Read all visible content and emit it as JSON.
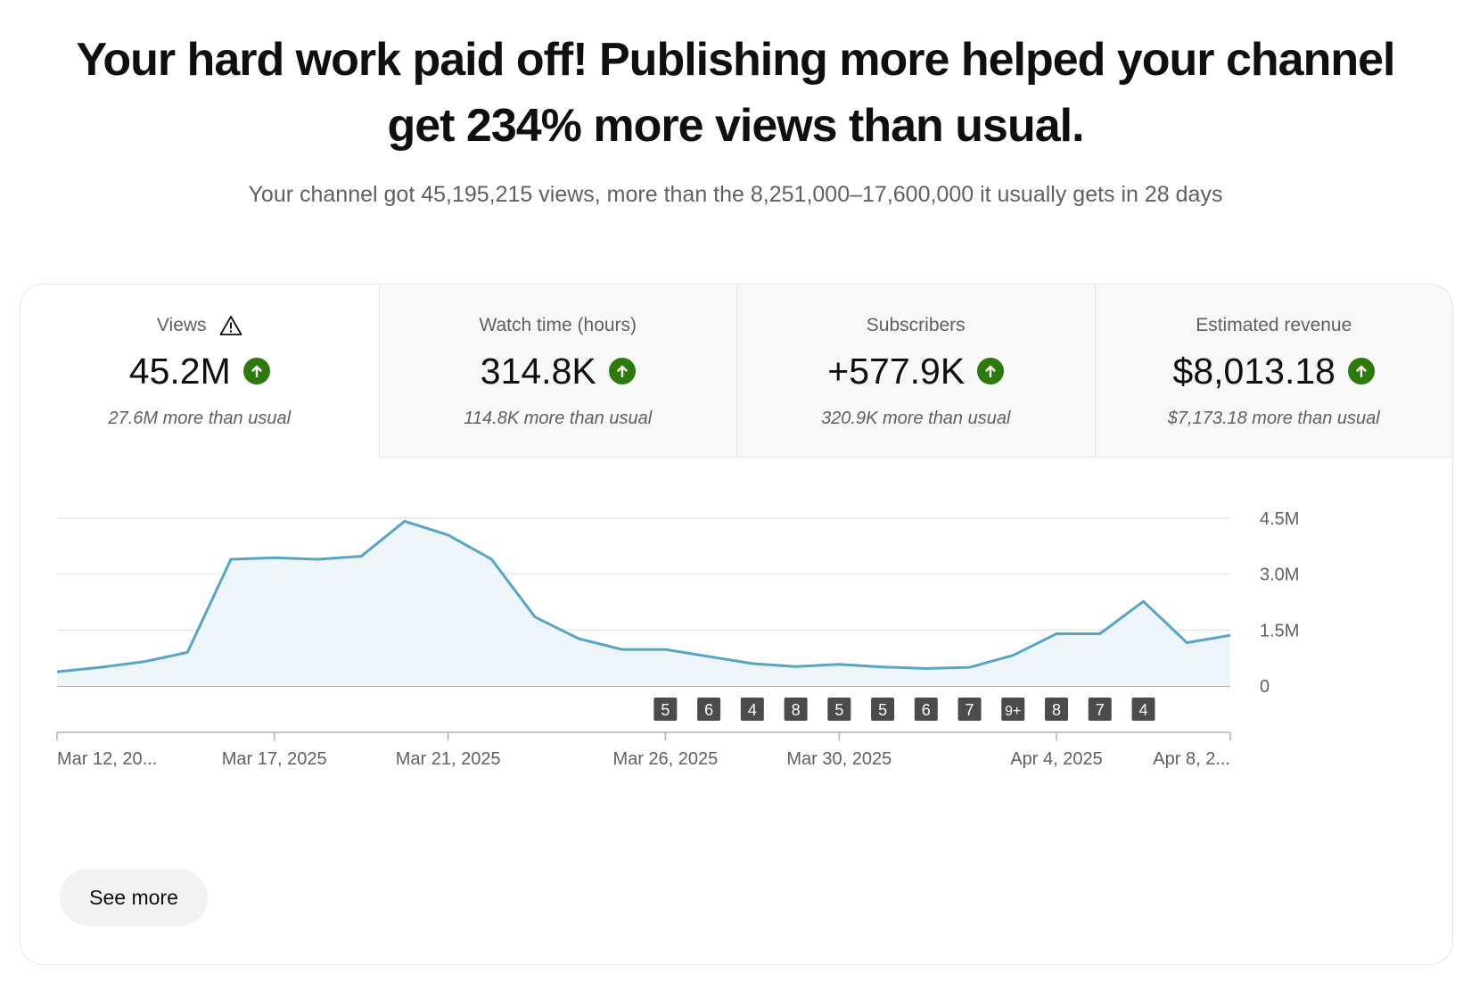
{
  "headline": {
    "line1": "Your hard work paid off! Publishing more helped your channel",
    "line2": "get 234% more views than usual."
  },
  "subline": "Your channel got 45,195,215 views, more than the 8,251,000–17,600,000 it usually gets in 28 days",
  "colors": {
    "accent_line": "#56a4c9",
    "area_fill": "#eef5f9",
    "up_badge": "#2b7a0b",
    "marker_bg": "#4b4b4b"
  },
  "tabs": [
    {
      "label": "Views",
      "value": "45.2M",
      "sub": "27.6M more than usual",
      "icon": "warning-icon",
      "active": true
    },
    {
      "label": "Watch time (hours)",
      "value": "314.8K",
      "sub": "114.8K more than usual",
      "active": false
    },
    {
      "label": "Subscribers",
      "value": "+577.9K",
      "sub": "320.9K more than usual",
      "active": false
    },
    {
      "label": "Estimated revenue",
      "value": "$8,013.18",
      "sub": "$7,173.18 more than usual",
      "active": false
    }
  ],
  "chart_data": {
    "type": "area",
    "title": "",
    "xlabel": "",
    "ylabel": "",
    "x": [
      "Mar 12, 2025",
      "Mar 13, 2025",
      "Mar 14, 2025",
      "Mar 15, 2025",
      "Mar 16, 2025",
      "Mar 17, 2025",
      "Mar 18, 2025",
      "Mar 19, 2025",
      "Mar 20, 2025",
      "Mar 21, 2025",
      "Mar 22, 2025",
      "Mar 23, 2025",
      "Mar 24, 2025",
      "Mar 25, 2025",
      "Mar 26, 2025",
      "Mar 27, 2025",
      "Mar 28, 2025",
      "Mar 29, 2025",
      "Mar 30, 2025",
      "Mar 31, 2025",
      "Apr 1, 2025",
      "Apr 2, 2025",
      "Apr 3, 2025",
      "Apr 4, 2025",
      "Apr 5, 2025",
      "Apr 6, 2025",
      "Apr 7, 2025",
      "Apr 8, 2025"
    ],
    "series": [
      {
        "values": [
          380000,
          500000,
          650000,
          900000,
          3400000,
          3440000,
          3400000,
          3480000,
          4420000,
          4050000,
          3400000,
          1850000,
          1270000,
          980000,
          980000,
          790000,
          600000,
          520000,
          580000,
          510000,
          470000,
          500000,
          820000,
          1400000,
          1400000,
          2270000,
          1160000,
          1360000
        ]
      }
    ],
    "y_ticks": [
      {
        "value": 4500000,
        "label": "4.5M"
      },
      {
        "value": 3000000,
        "label": "3.0M"
      },
      {
        "value": 1500000,
        "label": "1.5M"
      },
      {
        "value": 0,
        "label": "0"
      }
    ],
    "ylim": [
      0,
      4500000
    ],
    "x_tick_labels": [
      {
        "index": 0,
        "label": "Mar 12, 20..."
      },
      {
        "index": 5,
        "label": "Mar 17, 2025"
      },
      {
        "index": 9,
        "label": "Mar 21, 2025"
      },
      {
        "index": 14,
        "label": "Mar 26, 2025"
      },
      {
        "index": 18,
        "label": "Mar 30, 2025"
      },
      {
        "index": 23,
        "label": "Apr 4, 2025"
      },
      {
        "index": 27,
        "label": "Apr 8, 2..."
      }
    ],
    "upload_markers": [
      {
        "index": 14,
        "label": "5"
      },
      {
        "index": 15,
        "label": "6"
      },
      {
        "index": 16,
        "label": "4"
      },
      {
        "index": 17,
        "label": "8"
      },
      {
        "index": 18,
        "label": "5"
      },
      {
        "index": 19,
        "label": "5"
      },
      {
        "index": 20,
        "label": "6"
      },
      {
        "index": 21,
        "label": "7"
      },
      {
        "index": 22,
        "label": "9+"
      },
      {
        "index": 23,
        "label": "8"
      },
      {
        "index": 24,
        "label": "7"
      },
      {
        "index": 25,
        "label": "4"
      }
    ],
    "grid": true,
    "legend": "none"
  },
  "see_more_label": "See more"
}
